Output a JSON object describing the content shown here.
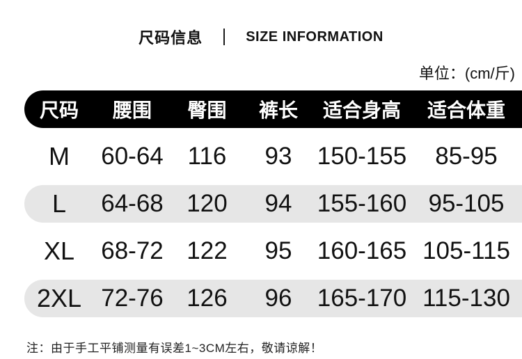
{
  "header": {
    "title_zh": "尺码信息",
    "title_en": "SIZE INFORMATION",
    "unit_label": "单位：(cm/斤)"
  },
  "chart_data": {
    "type": "table",
    "title": "尺码信息 | SIZE INFORMATION",
    "unit": "cm/斤",
    "columns": [
      "尺码",
      "腰围",
      "臀围",
      "裤长",
      "适合身高",
      "适合体重"
    ],
    "rows": [
      [
        "M",
        "60-64",
        "116",
        "93",
        "150-155",
        "85-95"
      ],
      [
        "L",
        "64-68",
        "120",
        "94",
        "155-160",
        "95-105"
      ],
      [
        "XL",
        "68-72",
        "122",
        "95",
        "160-165",
        "105-115"
      ],
      [
        "2XL",
        "72-76",
        "126",
        "96",
        "165-170",
        "115-130"
      ]
    ],
    "striped_row_indexes": [
      1,
      3
    ],
    "layout": {
      "header_bg": "#000000",
      "header_text_color": "#ffffff",
      "stripe_color": "#e6e6e6",
      "text_color": "#111111",
      "legend_position": "none",
      "grid": false
    }
  },
  "footer": {
    "note": "注：由于手工平铺测量有误差1~3CM左右，敬请谅解！"
  }
}
